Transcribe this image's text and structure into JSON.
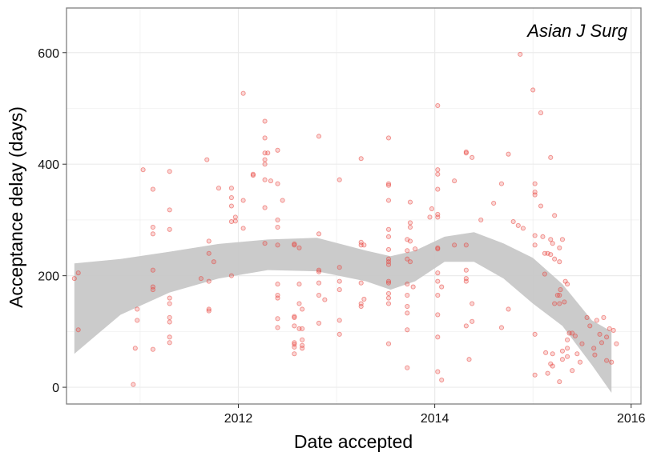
{
  "chart_data": {
    "type": "scatter",
    "title": "",
    "annotation": "Asian J Surg",
    "xlabel": "Date accepted",
    "ylabel": "Acceptance delay (days)",
    "xlim": [
      2010.25,
      2016.1
    ],
    "ylim": [
      -30,
      680
    ],
    "x_ticks": [
      2012,
      2014,
      2016
    ],
    "y_ticks": [
      0,
      200,
      400,
      600
    ],
    "grid": true,
    "legend": "none",
    "colors": {
      "points": "#e8413a",
      "ribbon": "#c8c8c8",
      "trend": "#000000",
      "grid": "#ebebeb",
      "frame": "#7f7f7f"
    },
    "smooth_x": [
      2010.33,
      2010.8,
      2011.3,
      2011.8,
      2012.3,
      2012.8,
      2013.3,
      2013.55,
      2013.8,
      2014.1,
      2014.4,
      2014.7,
      2015.0,
      2015.3,
      2015.6,
      2015.8
    ],
    "smooth_low": [
      60,
      130,
      170,
      195,
      210,
      208,
      190,
      175,
      190,
      225,
      225,
      195,
      150,
      110,
      40,
      -10
    ],
    "smooth_high": [
      222,
      230,
      243,
      257,
      265,
      268,
      245,
      235,
      245,
      270,
      278,
      258,
      232,
      185,
      120,
      100
    ],
    "points": [
      {
        "x": 2010.33,
        "y": 195
      },
      {
        "x": 2010.37,
        "y": 205
      },
      {
        "x": 2010.37,
        "y": 103
      },
      {
        "x": 2010.93,
        "y": 5
      },
      {
        "x": 2010.95,
        "y": 70
      },
      {
        "x": 2010.97,
        "y": 120
      },
      {
        "x": 2010.97,
        "y": 140
      },
      {
        "x": 2011.03,
        "y": 390
      },
      {
        "x": 2011.13,
        "y": 355
      },
      {
        "x": 2011.13,
        "y": 287
      },
      {
        "x": 2011.13,
        "y": 275
      },
      {
        "x": 2011.13,
        "y": 210
      },
      {
        "x": 2011.13,
        "y": 180
      },
      {
        "x": 2011.13,
        "y": 175
      },
      {
        "x": 2011.13,
        "y": 68
      },
      {
        "x": 2011.3,
        "y": 387
      },
      {
        "x": 2011.3,
        "y": 318
      },
      {
        "x": 2011.3,
        "y": 283
      },
      {
        "x": 2011.3,
        "y": 160
      },
      {
        "x": 2011.3,
        "y": 150
      },
      {
        "x": 2011.3,
        "y": 125
      },
      {
        "x": 2011.3,
        "y": 117
      },
      {
        "x": 2011.3,
        "y": 90
      },
      {
        "x": 2011.3,
        "y": 80
      },
      {
        "x": 2011.62,
        "y": 195
      },
      {
        "x": 2011.68,
        "y": 408
      },
      {
        "x": 2011.7,
        "y": 262
      },
      {
        "x": 2011.7,
        "y": 240
      },
      {
        "x": 2011.7,
        "y": 190
      },
      {
        "x": 2011.7,
        "y": 140
      },
      {
        "x": 2011.7,
        "y": 137
      },
      {
        "x": 2011.75,
        "y": 225
      },
      {
        "x": 2011.8,
        "y": 357
      },
      {
        "x": 2011.93,
        "y": 357
      },
      {
        "x": 2011.93,
        "y": 340
      },
      {
        "x": 2011.93,
        "y": 325
      },
      {
        "x": 2011.93,
        "y": 297
      },
      {
        "x": 2011.93,
        "y": 200
      },
      {
        "x": 2011.97,
        "y": 305
      },
      {
        "x": 2011.97,
        "y": 298
      },
      {
        "x": 2012.05,
        "y": 527
      },
      {
        "x": 2012.05,
        "y": 335
      },
      {
        "x": 2012.05,
        "y": 285
      },
      {
        "x": 2012.15,
        "y": 382
      },
      {
        "x": 2012.15,
        "y": 380
      },
      {
        "x": 2012.27,
        "y": 477
      },
      {
        "x": 2012.27,
        "y": 447
      },
      {
        "x": 2012.27,
        "y": 420
      },
      {
        "x": 2012.27,
        "y": 408
      },
      {
        "x": 2012.27,
        "y": 400
      },
      {
        "x": 2012.27,
        "y": 372
      },
      {
        "x": 2012.27,
        "y": 322
      },
      {
        "x": 2012.27,
        "y": 258
      },
      {
        "x": 2012.3,
        "y": 420
      },
      {
        "x": 2012.33,
        "y": 370
      },
      {
        "x": 2012.4,
        "y": 425
      },
      {
        "x": 2012.4,
        "y": 365
      },
      {
        "x": 2012.4,
        "y": 300
      },
      {
        "x": 2012.4,
        "y": 287
      },
      {
        "x": 2012.4,
        "y": 255
      },
      {
        "x": 2012.4,
        "y": 185
      },
      {
        "x": 2012.4,
        "y": 165
      },
      {
        "x": 2012.4,
        "y": 160
      },
      {
        "x": 2012.4,
        "y": 123
      },
      {
        "x": 2012.4,
        "y": 107
      },
      {
        "x": 2012.45,
        "y": 335
      },
      {
        "x": 2012.57,
        "y": 257
      },
      {
        "x": 2012.57,
        "y": 255
      },
      {
        "x": 2012.57,
        "y": 127
      },
      {
        "x": 2012.57,
        "y": 125
      },
      {
        "x": 2012.57,
        "y": 110
      },
      {
        "x": 2012.57,
        "y": 80
      },
      {
        "x": 2012.57,
        "y": 77
      },
      {
        "x": 2012.57,
        "y": 72
      },
      {
        "x": 2012.57,
        "y": 60
      },
      {
        "x": 2012.62,
        "y": 250
      },
      {
        "x": 2012.62,
        "y": 185
      },
      {
        "x": 2012.62,
        "y": 150
      },
      {
        "x": 2012.62,
        "y": 105
      },
      {
        "x": 2012.65,
        "y": 140
      },
      {
        "x": 2012.65,
        "y": 105
      },
      {
        "x": 2012.65,
        "y": 85
      },
      {
        "x": 2012.65,
        "y": 75
      },
      {
        "x": 2012.65,
        "y": 70
      },
      {
        "x": 2012.82,
        "y": 450
      },
      {
        "x": 2012.82,
        "y": 275
      },
      {
        "x": 2012.82,
        "y": 210
      },
      {
        "x": 2012.82,
        "y": 207
      },
      {
        "x": 2012.82,
        "y": 187
      },
      {
        "x": 2012.82,
        "y": 165
      },
      {
        "x": 2012.82,
        "y": 115
      },
      {
        "x": 2012.88,
        "y": 157
      },
      {
        "x": 2013.03,
        "y": 372
      },
      {
        "x": 2013.03,
        "y": 215
      },
      {
        "x": 2013.03,
        "y": 190
      },
      {
        "x": 2013.03,
        "y": 175
      },
      {
        "x": 2013.03,
        "y": 120
      },
      {
        "x": 2013.03,
        "y": 95
      },
      {
        "x": 2013.25,
        "y": 410
      },
      {
        "x": 2013.25,
        "y": 260
      },
      {
        "x": 2013.25,
        "y": 255
      },
      {
        "x": 2013.25,
        "y": 187
      },
      {
        "x": 2013.25,
        "y": 150
      },
      {
        "x": 2013.25,
        "y": 145
      },
      {
        "x": 2013.28,
        "y": 255
      },
      {
        "x": 2013.28,
        "y": 158
      },
      {
        "x": 2013.53,
        "y": 447
      },
      {
        "x": 2013.53,
        "y": 365
      },
      {
        "x": 2013.53,
        "y": 362
      },
      {
        "x": 2013.53,
        "y": 335
      },
      {
        "x": 2013.53,
        "y": 283
      },
      {
        "x": 2013.53,
        "y": 270
      },
      {
        "x": 2013.53,
        "y": 247
      },
      {
        "x": 2013.53,
        "y": 230
      },
      {
        "x": 2013.53,
        "y": 225
      },
      {
        "x": 2013.53,
        "y": 220
      },
      {
        "x": 2013.53,
        "y": 190
      },
      {
        "x": 2013.53,
        "y": 187
      },
      {
        "x": 2013.53,
        "y": 168
      },
      {
        "x": 2013.53,
        "y": 160
      },
      {
        "x": 2013.53,
        "y": 150
      },
      {
        "x": 2013.53,
        "y": 78
      },
      {
        "x": 2013.72,
        "y": 265
      },
      {
        "x": 2013.72,
        "y": 245
      },
      {
        "x": 2013.72,
        "y": 230
      },
      {
        "x": 2013.72,
        "y": 185
      },
      {
        "x": 2013.72,
        "y": 165
      },
      {
        "x": 2013.72,
        "y": 145
      },
      {
        "x": 2013.72,
        "y": 133
      },
      {
        "x": 2013.72,
        "y": 103
      },
      {
        "x": 2013.72,
        "y": 35
      },
      {
        "x": 2013.75,
        "y": 332
      },
      {
        "x": 2013.75,
        "y": 295
      },
      {
        "x": 2013.75,
        "y": 287
      },
      {
        "x": 2013.75,
        "y": 262
      },
      {
        "x": 2013.75,
        "y": 225
      },
      {
        "x": 2013.78,
        "y": 180
      },
      {
        "x": 2013.8,
        "y": 248
      },
      {
        "x": 2013.95,
        "y": 305
      },
      {
        "x": 2013.97,
        "y": 320
      },
      {
        "x": 2014.03,
        "y": 505
      },
      {
        "x": 2014.03,
        "y": 390
      },
      {
        "x": 2014.03,
        "y": 382
      },
      {
        "x": 2014.03,
        "y": 355
      },
      {
        "x": 2014.03,
        "y": 310
      },
      {
        "x": 2014.03,
        "y": 305
      },
      {
        "x": 2014.03,
        "y": 250
      },
      {
        "x": 2014.03,
        "y": 248
      },
      {
        "x": 2014.03,
        "y": 205
      },
      {
        "x": 2014.03,
        "y": 190
      },
      {
        "x": 2014.03,
        "y": 165
      },
      {
        "x": 2014.03,
        "y": 130
      },
      {
        "x": 2014.03,
        "y": 90
      },
      {
        "x": 2014.03,
        "y": 28
      },
      {
        "x": 2014.07,
        "y": 180
      },
      {
        "x": 2014.07,
        "y": 13
      },
      {
        "x": 2014.2,
        "y": 370
      },
      {
        "x": 2014.2,
        "y": 255
      },
      {
        "x": 2014.32,
        "y": 422
      },
      {
        "x": 2014.32,
        "y": 420
      },
      {
        "x": 2014.32,
        "y": 255
      },
      {
        "x": 2014.32,
        "y": 210
      },
      {
        "x": 2014.32,
        "y": 195
      },
      {
        "x": 2014.32,
        "y": 190
      },
      {
        "x": 2014.32,
        "y": 110
      },
      {
        "x": 2014.35,
        "y": 50
      },
      {
        "x": 2014.38,
        "y": 412
      },
      {
        "x": 2014.38,
        "y": 150
      },
      {
        "x": 2014.38,
        "y": 118
      },
      {
        "x": 2014.47,
        "y": 300
      },
      {
        "x": 2014.6,
        "y": 330
      },
      {
        "x": 2014.68,
        "y": 365
      },
      {
        "x": 2014.68,
        "y": 107
      },
      {
        "x": 2014.75,
        "y": 418
      },
      {
        "x": 2014.75,
        "y": 140
      },
      {
        "x": 2014.8,
        "y": 297
      },
      {
        "x": 2014.85,
        "y": 290
      },
      {
        "x": 2014.87,
        "y": 597
      },
      {
        "x": 2014.9,
        "y": 285
      },
      {
        "x": 2015.0,
        "y": 533
      },
      {
        "x": 2015.02,
        "y": 365
      },
      {
        "x": 2015.02,
        "y": 350
      },
      {
        "x": 2015.02,
        "y": 345
      },
      {
        "x": 2015.02,
        "y": 272
      },
      {
        "x": 2015.02,
        "y": 255
      },
      {
        "x": 2015.02,
        "y": 95
      },
      {
        "x": 2015.02,
        "y": 22
      },
      {
        "x": 2015.08,
        "y": 492
      },
      {
        "x": 2015.08,
        "y": 325
      },
      {
        "x": 2015.1,
        "y": 270
      },
      {
        "x": 2015.12,
        "y": 240
      },
      {
        "x": 2015.12,
        "y": 203
      },
      {
        "x": 2015.13,
        "y": 62
      },
      {
        "x": 2015.15,
        "y": 240
      },
      {
        "x": 2015.15,
        "y": 25
      },
      {
        "x": 2015.18,
        "y": 412
      },
      {
        "x": 2015.18,
        "y": 265
      },
      {
        "x": 2015.18,
        "y": 238
      },
      {
        "x": 2015.18,
        "y": 42
      },
      {
        "x": 2015.2,
        "y": 258
      },
      {
        "x": 2015.2,
        "y": 60
      },
      {
        "x": 2015.2,
        "y": 38
      },
      {
        "x": 2015.22,
        "y": 308
      },
      {
        "x": 2015.22,
        "y": 230
      },
      {
        "x": 2015.22,
        "y": 150
      },
      {
        "x": 2015.25,
        "y": 165
      },
      {
        "x": 2015.27,
        "y": 250
      },
      {
        "x": 2015.27,
        "y": 225
      },
      {
        "x": 2015.27,
        "y": 165
      },
      {
        "x": 2015.27,
        "y": 150
      },
      {
        "x": 2015.27,
        "y": 10
      },
      {
        "x": 2015.28,
        "y": 175
      },
      {
        "x": 2015.3,
        "y": 265
      },
      {
        "x": 2015.3,
        "y": 65
      },
      {
        "x": 2015.3,
        "y": 50
      },
      {
        "x": 2015.32,
        "y": 153
      },
      {
        "x": 2015.33,
        "y": 190
      },
      {
        "x": 2015.35,
        "y": 185
      },
      {
        "x": 2015.35,
        "y": 85
      },
      {
        "x": 2015.35,
        "y": 70
      },
      {
        "x": 2015.35,
        "y": 55
      },
      {
        "x": 2015.37,
        "y": 97
      },
      {
        "x": 2015.4,
        "y": 97
      },
      {
        "x": 2015.4,
        "y": 30
      },
      {
        "x": 2015.43,
        "y": 92
      },
      {
        "x": 2015.45,
        "y": 60
      },
      {
        "x": 2015.48,
        "y": 45
      },
      {
        "x": 2015.5,
        "y": 78
      },
      {
        "x": 2015.55,
        "y": 125
      },
      {
        "x": 2015.58,
        "y": 110
      },
      {
        "x": 2015.62,
        "y": 70
      },
      {
        "x": 2015.63,
        "y": 58
      },
      {
        "x": 2015.65,
        "y": 120
      },
      {
        "x": 2015.68,
        "y": 95
      },
      {
        "x": 2015.7,
        "y": 80
      },
      {
        "x": 2015.72,
        "y": 125
      },
      {
        "x": 2015.75,
        "y": 90
      },
      {
        "x": 2015.75,
        "y": 48
      },
      {
        "x": 2015.78,
        "y": 105
      },
      {
        "x": 2015.8,
        "y": 45
      },
      {
        "x": 2015.82,
        "y": 102
      },
      {
        "x": 2015.85,
        "y": 78
      }
    ]
  }
}
